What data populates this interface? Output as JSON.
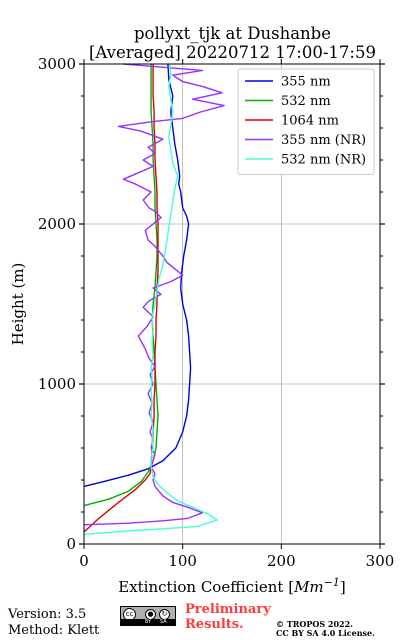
{
  "chart_data": {
    "type": "line",
    "title": "pollyxt_tjk at Dushanbe",
    "subtitle": "[Averaged] 20220712 17:00-17:59",
    "xlabel": "Extinction Coefficient [Mm⁻¹]",
    "ylabel": "Height (m)",
    "xlim": [
      0,
      300
    ],
    "ylim": [
      0,
      3000
    ],
    "xticks": [
      "0",
      "100",
      "200",
      "300"
    ],
    "yticks": [
      "0",
      "1000",
      "2000",
      "3000"
    ],
    "grid": true,
    "legend_position": "top-right",
    "series": [
      {
        "name": "355 nm",
        "color": "#0000dd",
        "points": [
          [
            0,
            360
          ],
          [
            20,
            390
          ],
          [
            45,
            430
          ],
          [
            65,
            470
          ],
          [
            80,
            520
          ],
          [
            93,
            600
          ],
          [
            100,
            700
          ],
          [
            104,
            800
          ],
          [
            106,
            900
          ],
          [
            107,
            1000
          ],
          [
            108,
            1100
          ],
          [
            107,
            1200
          ],
          [
            106,
            1300
          ],
          [
            104,
            1400
          ],
          [
            100,
            1500
          ],
          [
            98,
            1600
          ],
          [
            99,
            1700
          ],
          [
            101,
            1800
          ],
          [
            104,
            1900
          ],
          [
            106,
            2000
          ],
          [
            104,
            2050
          ],
          [
            100,
            2100
          ],
          [
            98,
            2200
          ],
          [
            96,
            2250
          ],
          [
            97,
            2300
          ],
          [
            95,
            2400
          ],
          [
            92,
            2500
          ],
          [
            90,
            2600
          ],
          [
            88,
            2700
          ],
          [
            90,
            2800
          ],
          [
            86,
            2900
          ],
          [
            85,
            3000
          ]
        ]
      },
      {
        "name": "532 nm",
        "color": "#00b000",
        "points": [
          [
            0,
            240
          ],
          [
            25,
            280
          ],
          [
            45,
            330
          ],
          [
            58,
            390
          ],
          [
            65,
            450
          ],
          [
            70,
            520
          ],
          [
            73,
            600
          ],
          [
            74,
            700
          ],
          [
            75,
            800
          ],
          [
            74,
            900
          ],
          [
            73,
            1000
          ],
          [
            72,
            1100
          ],
          [
            71,
            1200
          ],
          [
            70,
            1300
          ],
          [
            69,
            1400
          ],
          [
            70,
            1500
          ],
          [
            72,
            1600
          ],
          [
            73,
            1700
          ],
          [
            74,
            1800
          ],
          [
            74,
            1900
          ],
          [
            73,
            2000
          ],
          [
            72,
            2100
          ],
          [
            72,
            2200
          ],
          [
            71,
            2300
          ],
          [
            70,
            2400
          ],
          [
            70,
            2500
          ],
          [
            69,
            2600
          ],
          [
            68,
            2700
          ],
          [
            68,
            2800
          ],
          [
            68,
            2900
          ],
          [
            68,
            3000
          ]
        ]
      },
      {
        "name": "1064 nm",
        "color": "#dd0000",
        "points": [
          [
            0,
            75
          ],
          [
            15,
            160
          ],
          [
            35,
            260
          ],
          [
            52,
            340
          ],
          [
            62,
            400
          ],
          [
            67,
            440
          ],
          [
            68,
            500
          ],
          [
            69,
            600
          ],
          [
            70,
            700
          ],
          [
            71,
            800
          ],
          [
            71,
            900
          ],
          [
            72,
            1000
          ],
          [
            72,
            1100
          ],
          [
            72,
            1200
          ],
          [
            73,
            1300
          ],
          [
            73,
            1400
          ],
          [
            74,
            1500
          ],
          [
            74,
            1600
          ],
          [
            75,
            1700
          ],
          [
            75,
            1800
          ],
          [
            75,
            1900
          ],
          [
            75,
            2000
          ],
          [
            74,
            2100
          ],
          [
            74,
            2200
          ],
          [
            73,
            2300
          ],
          [
            72,
            2400
          ],
          [
            72,
            2500
          ],
          [
            71,
            2600
          ],
          [
            71,
            2700
          ],
          [
            70,
            2800
          ],
          [
            70,
            2900
          ],
          [
            70,
            3000
          ]
        ]
      },
      {
        "name": "355 nm (NR)",
        "color": "#9b30ff",
        "points": [
          [
            0,
            120
          ],
          [
            45,
            130
          ],
          [
            80,
            145
          ],
          [
            105,
            160
          ],
          [
            120,
            195
          ],
          [
            105,
            230
          ],
          [
            90,
            260
          ],
          [
            80,
            300
          ],
          [
            72,
            360
          ],
          [
            70,
            400
          ],
          [
            72,
            440
          ],
          [
            68,
            480
          ],
          [
            70,
            520
          ],
          [
            72,
            560
          ],
          [
            68,
            600
          ],
          [
            70,
            650
          ],
          [
            67,
            700
          ],
          [
            70,
            760
          ],
          [
            66,
            820
          ],
          [
            69,
            880
          ],
          [
            65,
            940
          ],
          [
            70,
            1000
          ],
          [
            67,
            1060
          ],
          [
            72,
            1110
          ],
          [
            66,
            1160
          ],
          [
            62,
            1220
          ],
          [
            55,
            1300
          ],
          [
            64,
            1360
          ],
          [
            70,
            1420
          ],
          [
            60,
            1480
          ],
          [
            66,
            1520
          ],
          [
            78,
            1560
          ],
          [
            70,
            1600
          ],
          [
            88,
            1640
          ],
          [
            100,
            1680
          ],
          [
            92,
            1720
          ],
          [
            84,
            1760
          ],
          [
            80,
            1800
          ],
          [
            72,
            1860
          ],
          [
            65,
            1900
          ],
          [
            62,
            1960
          ],
          [
            70,
            2000
          ],
          [
            78,
            2040
          ],
          [
            72,
            2080
          ],
          [
            66,
            2100
          ],
          [
            60,
            2150
          ],
          [
            68,
            2200
          ],
          [
            52,
            2250
          ],
          [
            40,
            2280
          ],
          [
            55,
            2320
          ],
          [
            70,
            2360
          ],
          [
            60,
            2400
          ],
          [
            72,
            2440
          ],
          [
            65,
            2480
          ],
          [
            80,
            2530
          ],
          [
            58,
            2580
          ],
          [
            35,
            2610
          ],
          [
            70,
            2640
          ],
          [
            100,
            2660
          ],
          [
            118,
            2700
          ],
          [
            142,
            2740
          ],
          [
            110,
            2780
          ],
          [
            140,
            2820
          ],
          [
            120,
            2860
          ],
          [
            100,
            2890
          ],
          [
            90,
            2930
          ],
          [
            120,
            2960
          ],
          [
            70,
            2985
          ],
          [
            40,
            3000
          ]
        ]
      },
      {
        "name": "532 nm (NR)",
        "color": "#40ffd9",
        "points": [
          [
            0,
            60
          ],
          [
            40,
            80
          ],
          [
            80,
            95
          ],
          [
            115,
            110
          ],
          [
            135,
            150
          ],
          [
            125,
            190
          ],
          [
            110,
            230
          ],
          [
            95,
            270
          ],
          [
            84,
            320
          ],
          [
            74,
            380
          ],
          [
            70,
            420
          ],
          [
            68,
            480
          ],
          [
            68,
            540
          ],
          [
            70,
            600
          ],
          [
            69,
            660
          ],
          [
            70,
            720
          ],
          [
            68,
            800
          ],
          [
            69,
            880
          ],
          [
            68,
            960
          ],
          [
            69,
            1040
          ],
          [
            68,
            1100
          ],
          [
            70,
            1180
          ],
          [
            69,
            1260
          ],
          [
            70,
            1340
          ],
          [
            69,
            1420
          ],
          [
            72,
            1500
          ],
          [
            74,
            1580
          ],
          [
            76,
            1660
          ],
          [
            80,
            1740
          ],
          [
            82,
            1820
          ],
          [
            84,
            1900
          ],
          [
            86,
            1980
          ],
          [
            88,
            2060
          ],
          [
            90,
            2140
          ],
          [
            92,
            2220
          ],
          [
            95,
            2300
          ],
          [
            90,
            2380
          ],
          [
            88,
            2460
          ],
          [
            86,
            2540
          ],
          [
            88,
            2620
          ],
          [
            90,
            2700
          ],
          [
            88,
            2780
          ],
          [
            86,
            2860
          ],
          [
            88,
            2940
          ],
          [
            87,
            3000
          ]
        ]
      }
    ]
  },
  "footer": {
    "version": "Version: 3.5",
    "method": "Method: Klett",
    "preliminary_line1": "Preliminary",
    "preliminary_line2": "Results.",
    "copyright_line1": "© TROPOS 2022.",
    "copyright_line2": "CC BY SA 4.0 License."
  },
  "license_badge": {
    "cc": "cc",
    "by": "BY",
    "sa": "SA"
  }
}
